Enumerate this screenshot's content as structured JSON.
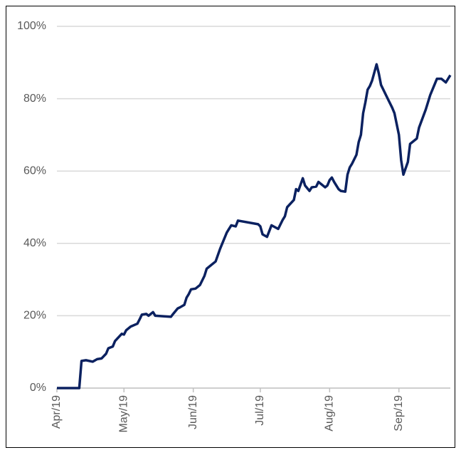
{
  "chart_data": {
    "type": "line",
    "series": [
      {
        "color": "#0b2160",
        "x": [
          0,
          10,
          11,
          13,
          16,
          18,
          20,
          22,
          23,
          25,
          26,
          29,
          30,
          31,
          33,
          36,
          37,
          38,
          40,
          41,
          43,
          44,
          51,
          52,
          54,
          55,
          57,
          58,
          59,
          60,
          62,
          64,
          66,
          67,
          69,
          71,
          73,
          75,
          76,
          77,
          78,
          80,
          81,
          90,
          91,
          92,
          94,
          96,
          99,
          101,
          102,
          103,
          106,
          107,
          108,
          110,
          111,
          113,
          114,
          116,
          117,
          119,
          120,
          121,
          122,
          123,
          124,
          126,
          127,
          129,
          130,
          131,
          132,
          134,
          135,
          136,
          137,
          138,
          139,
          140,
          141,
          143,
          144,
          145,
          148,
          150,
          151,
          153,
          154,
          155,
          157,
          158,
          161,
          162,
          165,
          167,
          169,
          170,
          172,
          174,
          176
        ],
        "values": [
          0,
          0,
          7.5,
          7.7,
          7.3,
          8,
          8.2,
          9.5,
          11,
          11.5,
          13,
          15,
          14.8,
          16,
          17,
          17.8,
          19,
          20.3,
          20.5,
          20,
          21,
          20,
          19.7,
          20.5,
          22,
          22.3,
          23,
          25,
          26,
          27.3,
          27.5,
          28.5,
          31,
          33,
          34,
          35,
          38.5,
          41.5,
          43,
          44,
          45,
          44.7,
          46.3,
          45.3,
          44.7,
          42.5,
          41.8,
          45,
          44,
          46.5,
          47.5,
          50,
          52,
          55,
          54.5,
          58,
          56,
          54.5,
          55.5,
          55.7,
          57,
          56,
          55.5,
          56,
          57.5,
          58.2,
          57,
          55,
          54.5,
          54.3,
          59,
          61,
          62,
          64.5,
          68,
          70,
          76,
          79,
          82.5,
          83.5,
          85,
          89.5,
          87,
          83.8,
          80,
          77.5,
          76,
          70,
          63,
          59,
          62.5,
          67.5,
          69,
          72,
          77,
          81,
          84,
          85.5,
          85.5,
          84.5,
          86.5
        ]
      }
    ],
    "xlim": [
      0,
      176
    ],
    "xticks": [
      {
        "value": 0,
        "label": "Apr/19"
      },
      {
        "value": 30,
        "label": "May/19"
      },
      {
        "value": 61,
        "label": "Jun/19"
      },
      {
        "value": 91,
        "label": "Jul/19"
      },
      {
        "value": 122,
        "label": "Aug/19"
      },
      {
        "value": 153,
        "label": "Sep/19"
      }
    ],
    "ylim": [
      0,
      100
    ],
    "yticks": [
      {
        "value": 0,
        "label": "0%"
      },
      {
        "value": 20,
        "label": "20%"
      },
      {
        "value": 40,
        "label": "40%"
      },
      {
        "value": 60,
        "label": "60%"
      },
      {
        "value": 80,
        "label": "80%"
      },
      {
        "value": 100,
        "label": "100%"
      }
    ],
    "grid": true
  }
}
